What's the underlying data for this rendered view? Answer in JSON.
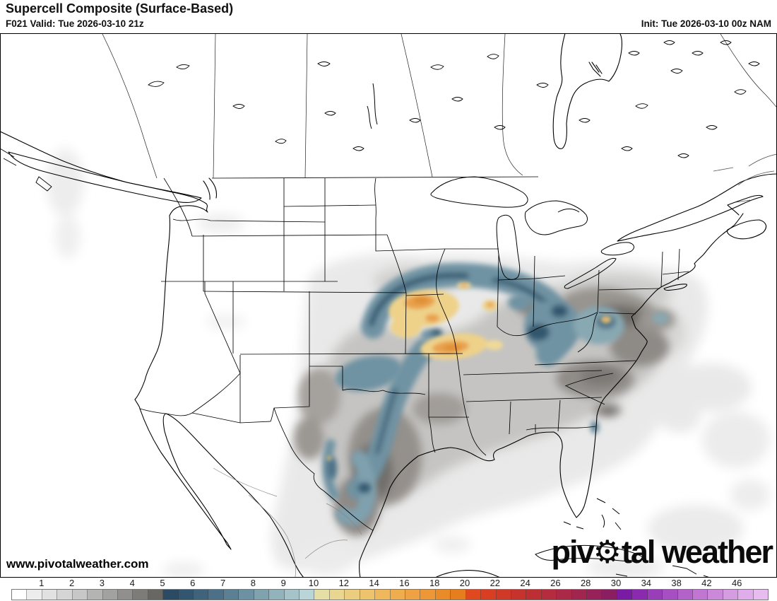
{
  "header": {
    "title": "Supercell Composite (Surface-Based)",
    "valid": "F021 Valid: Tue 2026-03-10 21z",
    "init": "Init: Tue 2026-03-10 00z NAM"
  },
  "map": {
    "watermark": "www.pivotalweather.com",
    "logo": {
      "part1": "piv",
      "gear_icon": "⚙",
      "part2": "tal weather"
    }
  },
  "colorbar": {
    "ticks": [
      "1",
      "2",
      "3",
      "4",
      "5",
      "6",
      "7",
      "8",
      "9",
      "10",
      "12",
      "14",
      "16",
      "18",
      "20",
      "22",
      "24",
      "26",
      "28",
      "30",
      "34",
      "38",
      "42",
      "46"
    ],
    "segment_colors": [
      "#ffffff",
      "#ededed",
      "#e1e1e1",
      "#d5d5d5",
      "#c7c7c7",
      "#b4b4b2",
      "#a2a2a0",
      "#908f8d",
      "#7d7c79",
      "#696764",
      "#2b4a63",
      "#32566f",
      "#3e637b",
      "#4b7087",
      "#5b8093",
      "#6d91a2",
      "#7fa2ae",
      "#92b3bb",
      "#a5c4c9",
      "#bad5d7",
      "#e6dfa5",
      "#e9d791",
      "#ebcd80",
      "#edc36e",
      "#efb85d",
      "#f0ad4f",
      "#efa244",
      "#ed9737",
      "#ea8b2a",
      "#e67e1d",
      "#e1481f",
      "#d93e23",
      "#d03827",
      "#c7332c",
      "#be2f34",
      "#b42c3d",
      "#ab2946",
      "#a1264f",
      "#962259",
      "#8b1e61",
      "#7a1ba4",
      "#8b2aaf",
      "#993db9",
      "#a64fc2",
      "#b362ca",
      "#c076d2",
      "#cc89da",
      "#d69ce2",
      "#dfade9",
      "#e7bdef"
    ],
    "field_palette": {
      "low_gray": "#e9e9e9",
      "mid_gray": "#c5c4c2",
      "dark_gray": "#6f6c68",
      "blue_mid": "#6f93a3",
      "blue_dark": "#33566e",
      "yellow": "#eed28a",
      "orange": "#e9a14e"
    }
  }
}
